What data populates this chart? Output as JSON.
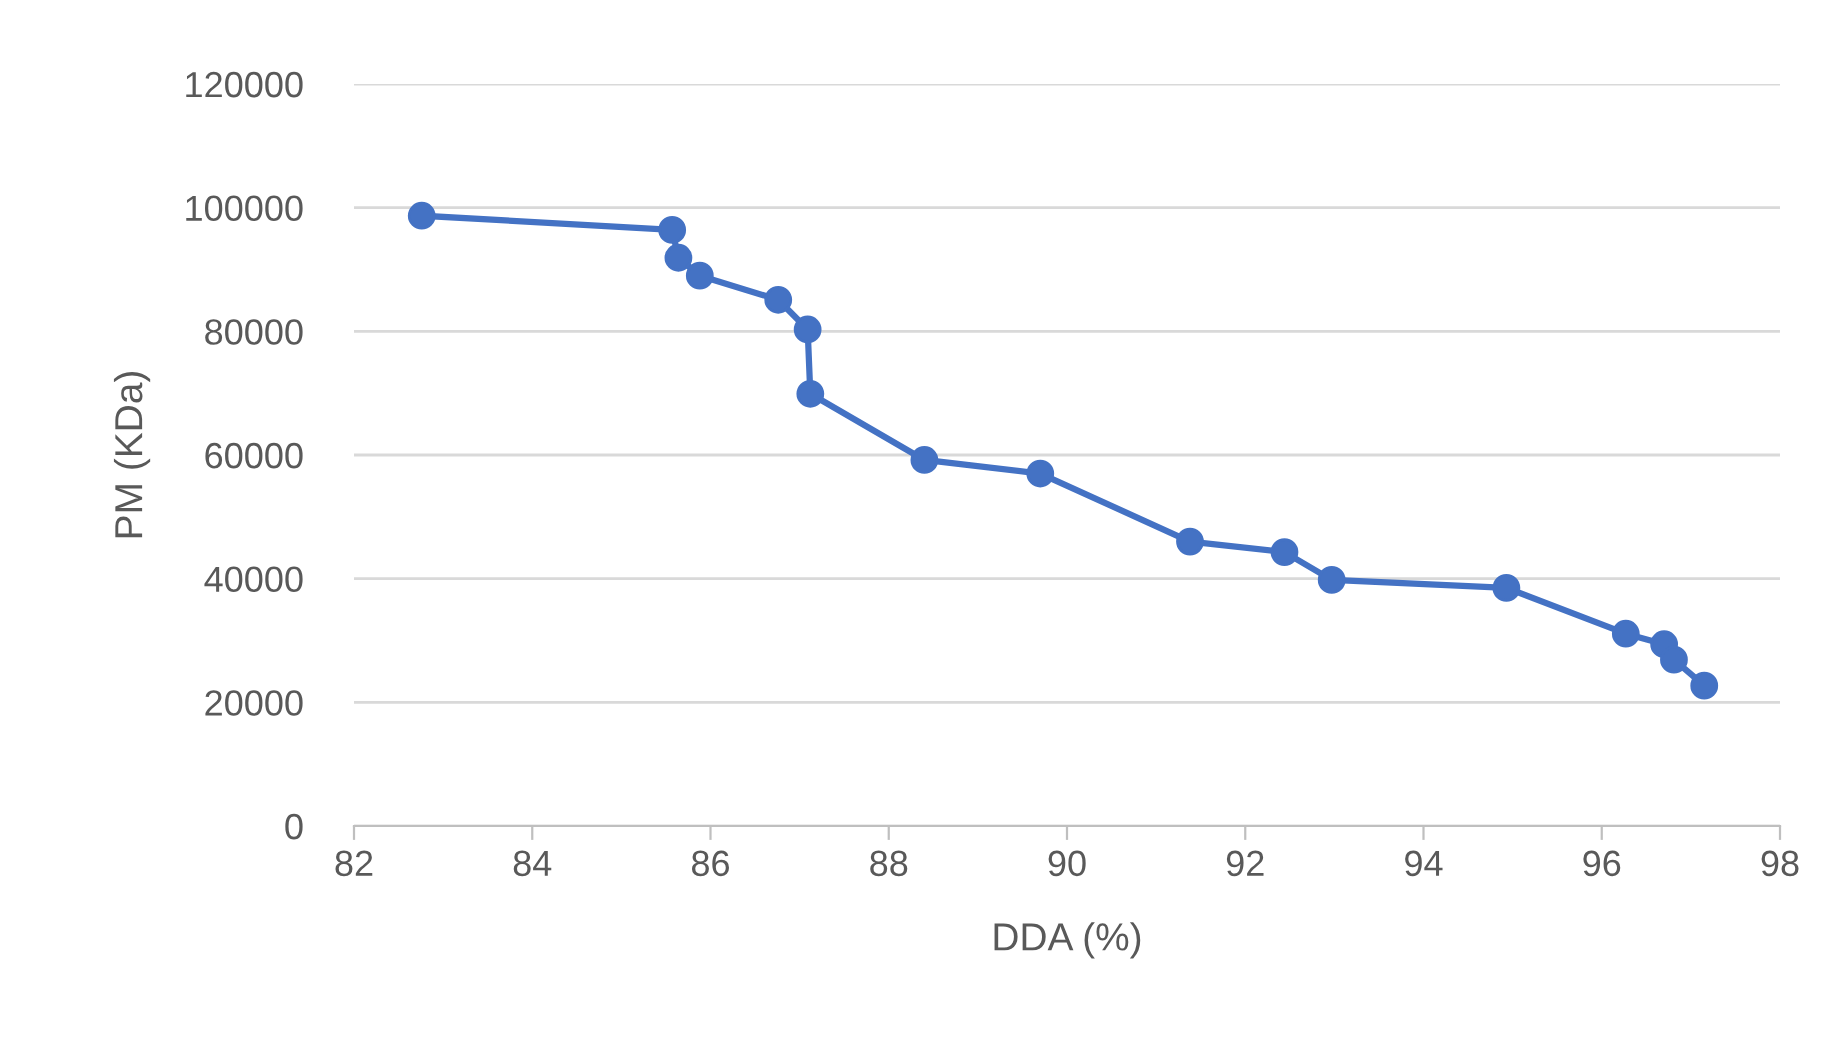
{
  "chart_data": {
    "type": "line",
    "xlabel": "DDA (%)",
    "ylabel": "PM (KDa)",
    "x": [
      82.76,
      85.57,
      85.64,
      85.88,
      86.76,
      87.09,
      87.12,
      88.4,
      89.7,
      91.38,
      92.44,
      92.97,
      94.93,
      96.27,
      96.7,
      96.81,
      97.15
    ],
    "series": [
      {
        "color": "#4472c4",
        "values": [
          98700,
          96400,
          91900,
          89000,
          85100,
          80300,
          69900,
          59200,
          57000,
          46000,
          44300,
          39800,
          38500,
          31100,
          29400,
          26900,
          22700
        ]
      }
    ],
    "xlim": [
      82,
      98
    ],
    "xticks": [
      82,
      84,
      86,
      88,
      90,
      92,
      94,
      96,
      98
    ],
    "ylim": [
      0,
      120000
    ],
    "yticks": [
      0,
      20000,
      40000,
      60000,
      80000,
      100000,
      120000
    ],
    "grid": "y",
    "marker": "circle",
    "line_style": "solid",
    "legend": false
  }
}
